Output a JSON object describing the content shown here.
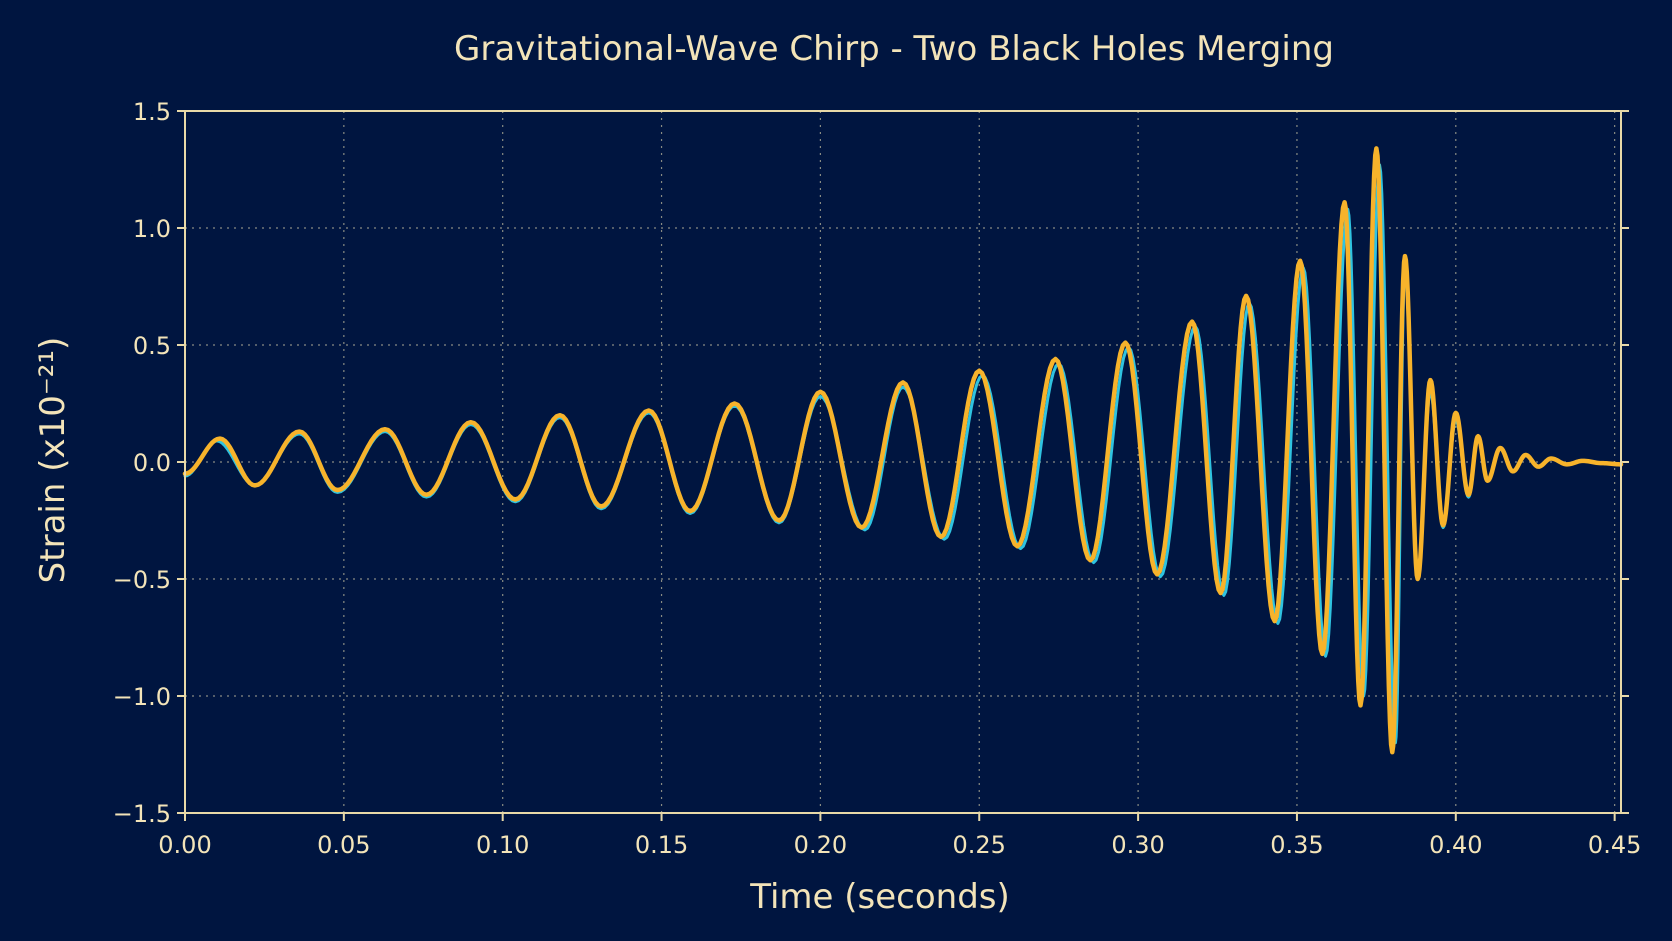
{
  "chart_data": {
    "type": "line",
    "title": "Gravitational-Wave Chirp - Two Black Holes Merging",
    "xlabel": "Time (seconds)",
    "ylabel": "Strain (x10⁻²¹)",
    "xlim": [
      0,
      0.452
    ],
    "ylim": [
      -1.5,
      1.5
    ],
    "x_ticks": [
      0.0,
      0.05,
      0.1,
      0.15,
      0.2,
      0.25,
      0.3,
      0.35,
      0.4,
      0.45
    ],
    "x_tick_labels": [
      "0.00",
      "0.05",
      "0.10",
      "0.15",
      "0.20",
      "0.25",
      "0.30",
      "0.35",
      "0.40",
      "0.45"
    ],
    "y_ticks": [
      -1.5,
      -1.0,
      -0.5,
      0.0,
      0.5,
      1.0,
      1.5
    ],
    "y_tick_labels": [
      "−1.5",
      "−1.0",
      "−0.5",
      "0.0",
      "0.5",
      "1.0",
      "1.5"
    ],
    "grid": true,
    "legend": "none",
    "series": [
      {
        "color": "#2fc3e0",
        "x": [
          0.0,
          0.01,
          0.022,
          0.036,
          0.048,
          0.063,
          0.076,
          0.09,
          0.104,
          0.118,
          0.131,
          0.146,
          0.159,
          0.173,
          0.187,
          0.2,
          0.214,
          0.226,
          0.239,
          0.251,
          0.263,
          0.275,
          0.286,
          0.297,
          0.307,
          0.318,
          0.327,
          0.335,
          0.344,
          0.352,
          0.359,
          0.366,
          0.371,
          0.376,
          0.381,
          0.384,
          0.388,
          0.392,
          0.396,
          0.4,
          0.404,
          0.407,
          0.41,
          0.414,
          0.418,
          0.422,
          0.426,
          0.43,
          0.435,
          0.44,
          0.446,
          0.452
        ],
        "y": [
          -0.06,
          0.09,
          -0.1,
          0.12,
          -0.13,
          0.13,
          -0.15,
          0.16,
          -0.17,
          0.19,
          -0.2,
          0.21,
          -0.22,
          0.24,
          -0.26,
          0.28,
          -0.29,
          0.32,
          -0.33,
          0.37,
          -0.37,
          0.42,
          -0.43,
          0.49,
          -0.49,
          0.58,
          -0.57,
          0.68,
          -0.69,
          0.83,
          -0.83,
          1.08,
          -1.0,
          1.27,
          -1.2,
          0.82,
          -0.48,
          0.3,
          -0.28,
          0.18,
          -0.15,
          0.1,
          -0.08,
          0.06,
          -0.04,
          0.03,
          -0.02,
          0.015,
          -0.01,
          0.005,
          -0.005,
          -0.01
        ]
      },
      {
        "color": "#f7b32b",
        "x": [
          0.0,
          0.011,
          0.022,
          0.036,
          0.048,
          0.063,
          0.076,
          0.09,
          0.104,
          0.118,
          0.131,
          0.146,
          0.159,
          0.173,
          0.187,
          0.2,
          0.213,
          0.226,
          0.238,
          0.25,
          0.262,
          0.274,
          0.285,
          0.296,
          0.306,
          0.317,
          0.326,
          0.334,
          0.343,
          0.351,
          0.358,
          0.365,
          0.37,
          0.375,
          0.38,
          0.384,
          0.388,
          0.392,
          0.396,
          0.4,
          0.404,
          0.407,
          0.41,
          0.414,
          0.418,
          0.422,
          0.426,
          0.43,
          0.435,
          0.44,
          0.446,
          0.452
        ],
        "y": [
          -0.05,
          0.1,
          -0.1,
          0.13,
          -0.12,
          0.14,
          -0.14,
          0.17,
          -0.16,
          0.2,
          -0.19,
          0.22,
          -0.21,
          0.25,
          -0.25,
          0.3,
          -0.28,
          0.34,
          -0.32,
          0.39,
          -0.36,
          0.44,
          -0.42,
          0.51,
          -0.48,
          0.6,
          -0.56,
          0.71,
          -0.68,
          0.86,
          -0.82,
          1.11,
          -1.04,
          1.34,
          -1.24,
          0.88,
          -0.5,
          0.35,
          -0.27,
          0.21,
          -0.14,
          0.11,
          -0.08,
          0.06,
          -0.04,
          0.03,
          -0.02,
          0.015,
          -0.01,
          0.005,
          -0.005,
          -0.01
        ]
      }
    ]
  }
}
